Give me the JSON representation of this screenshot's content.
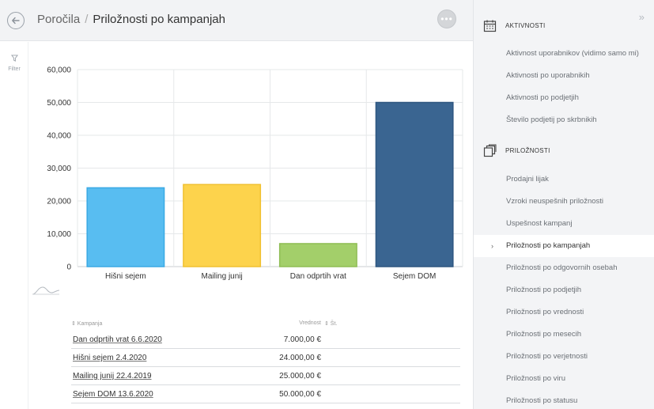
{
  "header": {
    "breadcrumb_root": "Poročila",
    "breadcrumb_separator": "/",
    "title": "Priložnosti po kampanjah",
    "more_label": "•••"
  },
  "filter": {
    "label": "Filter"
  },
  "chart_data": {
    "type": "bar",
    "categories": [
      "Hišni sejem",
      "Mailing junij",
      "Dan odprtih vrat",
      "Sejem DOM"
    ],
    "values": [
      24000,
      25000,
      7000,
      50000
    ],
    "colors": [
      "#58bdf1",
      "#fdd34c",
      "#a3cf6a",
      "#3a6591"
    ],
    "edge_colors": [
      "#3aa9e4",
      "#f0c030",
      "#8fbd55",
      "#2e5680"
    ],
    "ylim": [
      0,
      60000
    ],
    "yticks": [
      0,
      10000,
      20000,
      30000,
      40000,
      50000,
      60000
    ],
    "ytick_labels": [
      "0",
      "10,000",
      "20,000",
      "30,000",
      "40,000",
      "50,000",
      "60,000"
    ],
    "grid": true,
    "xlabel": "",
    "ylabel": ""
  },
  "table": {
    "headers": {
      "kampanja": "⇕ Kampanja",
      "vrednost": "Vrednost",
      "st": "⇕ Št."
    },
    "rows": [
      {
        "name": "Dan odprtih vrat 6.6.2020",
        "value": "7.000,00 €"
      },
      {
        "name": "Hišni sejem 2.4.2020",
        "value": "24.000,00 €"
      },
      {
        "name": "Mailing junij 22.4.2019",
        "value": "25.000,00 €"
      },
      {
        "name": "Sejem DOM 13.6.2020",
        "value": "50.000,00 €"
      }
    ]
  },
  "sidebar": {
    "collapse_label": "»",
    "section_activities": {
      "title": "AKTIVNOSTI",
      "items": [
        "Aktivnost uporabnikov (vidimo samo mi)",
        "Aktivnosti po uporabnikih",
        "Aktivnosti po podjetjih",
        "Število podjetij po skrbnikih"
      ]
    },
    "section_opportunities": {
      "title": "PRILOŽNOSTI",
      "items": [
        "Prodajni lijak",
        "Vzroki neuspešnih priložnosti",
        "Uspešnost kampanj",
        "Priložnosti po kampanjah",
        "Priložnosti po odgovornih osebah",
        "Priložnosti po podjetjih",
        "Priložnosti po vrednosti",
        "Priložnosti po mesecih",
        "Priložnosti po verjetnosti",
        "Priložnosti po viru",
        "Priložnosti po statusu"
      ],
      "active_index": 3,
      "active_marker": "›"
    }
  }
}
